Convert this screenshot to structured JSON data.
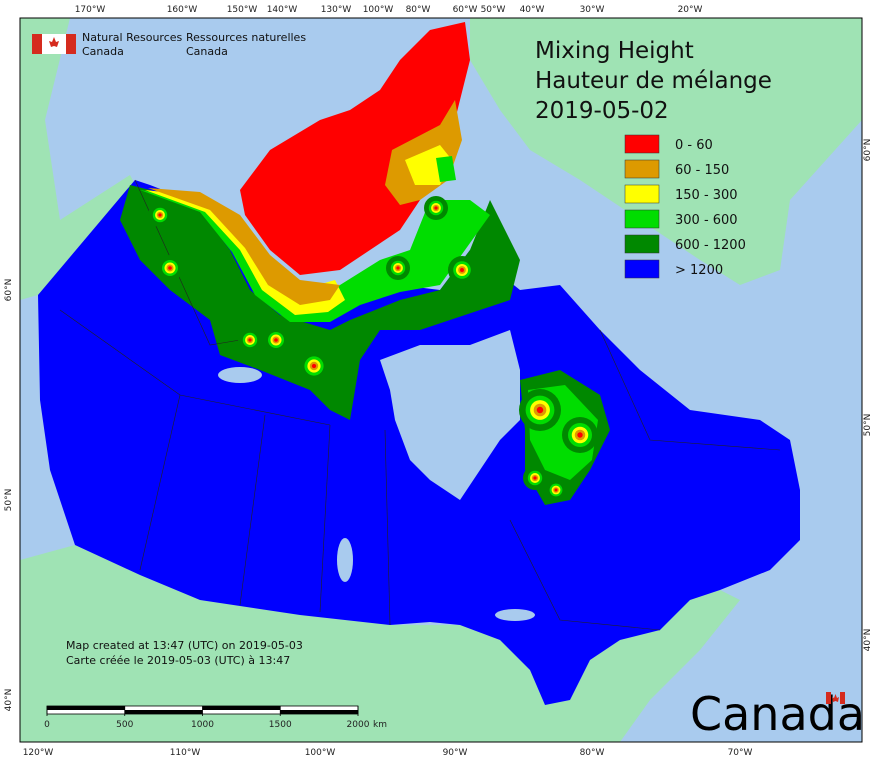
{
  "header": {
    "agency_en": [
      "Natural Resources",
      "Canada"
    ],
    "agency_fr": [
      "Ressources naturelles",
      "Canada"
    ]
  },
  "title": [
    "Mixing Height",
    "Hauteur de mélange",
    "2019-05-02"
  ],
  "legend": [
    {
      "label": "0 - 60",
      "color": "#ff0000"
    },
    {
      "label": "60 - 150",
      "color": "#dd9a00"
    },
    {
      "label": "150 - 300",
      "color": "#ffff00"
    },
    {
      "label": "300 - 600",
      "color": "#00dd00"
    },
    {
      "label": "600 - 1200",
      "color": "#008800"
    },
    {
      "label": "> 1200",
      "color": "#0000ff"
    }
  ],
  "graticule": {
    "top": [
      "170°W",
      "160°W",
      "150°W",
      "140°W",
      "130°W",
      "100°W",
      "80°W",
      "60°W",
      "50°W",
      "40°W",
      "30°W",
      "20°W"
    ],
    "bottom": [
      "120°W",
      "110°W",
      "100°W",
      "90°W",
      "80°W",
      "70°W"
    ],
    "left": [
      "60°N",
      "50°N",
      "40°N"
    ],
    "right": [
      "60°N",
      "50°N",
      "40°N"
    ]
  },
  "credits": [
    "Map created at 13:47 (UTC) on 2019-05-03",
    "Carte créée le 2019-05-03 (UTC) à 13:47"
  ],
  "scale_bar": {
    "ticks": [
      0,
      500,
      1000,
      1500,
      2000
    ],
    "unit": "km"
  },
  "wordmark": "Canada"
}
